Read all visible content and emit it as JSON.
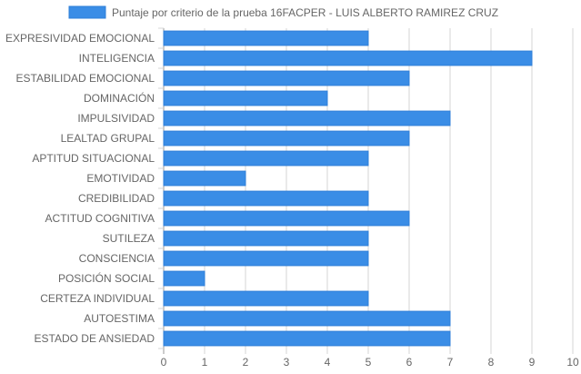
{
  "chart_data": {
    "type": "bar",
    "orientation": "horizontal",
    "categories": [
      "EXPRESIVIDAD EMOCIONAL",
      "INTELIGENCIA",
      "ESTABILIDAD EMOCIONAL",
      "DOMINACIÓN",
      "IMPULSIVIDAD",
      "LEALTAD GRUPAL",
      "APTITUD SITUACIONAL",
      "EMOTIVIDAD",
      "CREDIBILIDAD",
      "ACTITUD COGNITIVA",
      "SUTILEZA",
      "CONSCIENCIA",
      "POSICIÓN SOCIAL",
      "CERTEZA INDIVIDUAL",
      "AUTOESTIMA",
      "ESTADO DE ANSIEDAD"
    ],
    "series": [
      {
        "name": "Puntaje por criterio de la prueba 16FACPER - LUIS ALBERTO RAMIREZ CRUZ",
        "values": [
          5,
          9,
          6,
          4,
          7,
          6,
          5,
          2,
          5,
          6,
          5,
          5,
          1,
          5,
          7,
          7
        ],
        "color": "#3a8de6",
        "border_color": "#2f7fd8"
      }
    ],
    "x_ticks": [
      "0",
      "1",
      "2",
      "3",
      "4",
      "5",
      "6",
      "7",
      "8",
      "9",
      "10"
    ],
    "xlim": [
      0,
      10
    ],
    "grid": true,
    "legend_position": "top"
  }
}
